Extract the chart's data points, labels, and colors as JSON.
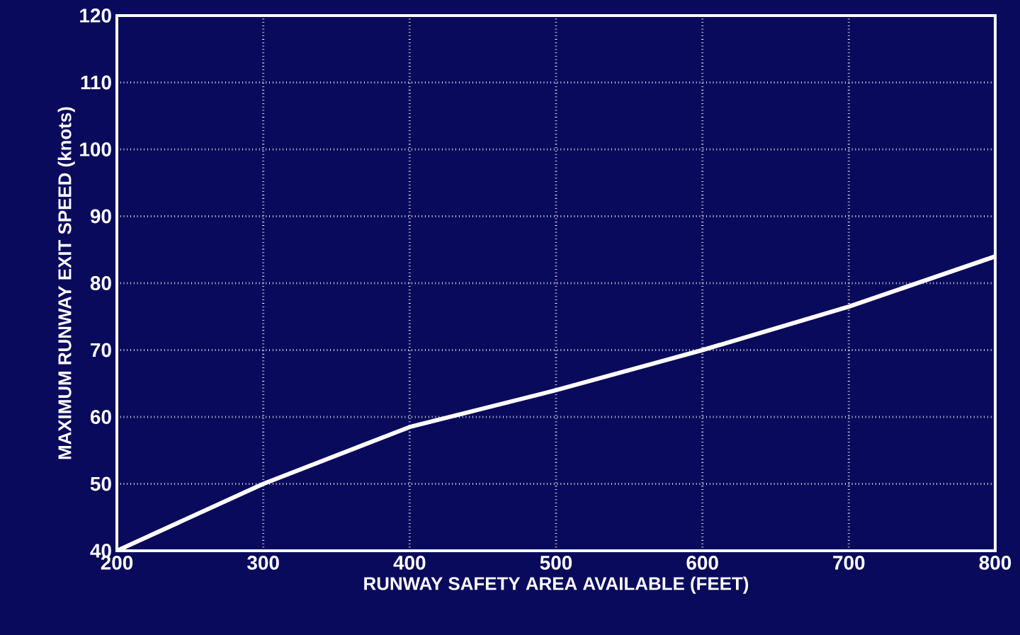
{
  "chart_data": {
    "type": "line",
    "xlabel": "RUNWAY SAFETY AREA AVAILABLE (FEET)",
    "ylabel": "MAXIMUM RUNWAY EXIT SPEED (knots)",
    "x": [
      200,
      300,
      400,
      500,
      600,
      700,
      800
    ],
    "series": [
      {
        "color": "#ffffff",
        "values": [
          40,
          50,
          58.5,
          64,
          70,
          76.5,
          84
        ]
      }
    ],
    "xlim": [
      200,
      800
    ],
    "ylim": [
      40,
      120
    ],
    "xticks": [
      200,
      300,
      400,
      500,
      600,
      700,
      800
    ],
    "yticks": [
      40,
      50,
      60,
      70,
      80,
      90,
      100,
      110,
      120
    ],
    "grid": true,
    "line_style": "solid"
  }
}
